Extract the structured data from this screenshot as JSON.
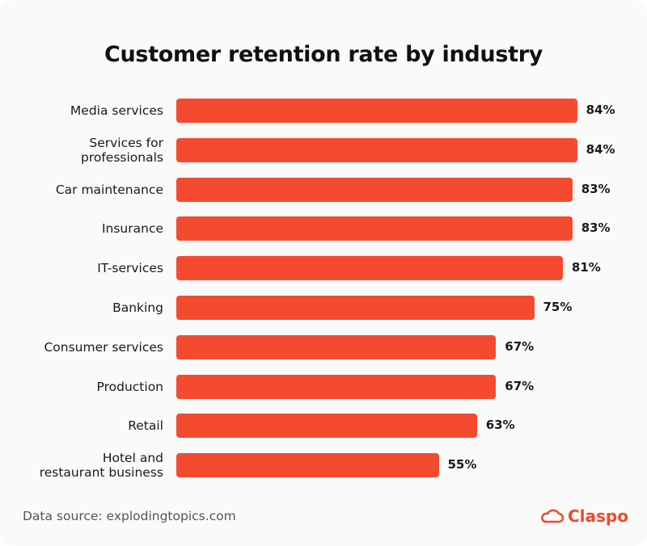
{
  "chart_data": {
    "type": "bar",
    "orientation": "horizontal",
    "title": "Customer retention rate by industry",
    "categories": [
      [
        "Media services"
      ],
      [
        "Services for",
        "professionals"
      ],
      [
        "Car maintenance"
      ],
      [
        "Insurance"
      ],
      [
        "IT-services"
      ],
      [
        "Banking"
      ],
      [
        "Consumer services"
      ],
      [
        "Production"
      ],
      [
        "Retail"
      ],
      [
        "Hotel and",
        "restaurant business"
      ]
    ],
    "values": [
      84,
      84,
      83,
      83,
      81,
      75,
      67,
      67,
      63,
      55
    ],
    "value_labels": [
      "84%",
      "84%",
      "83%",
      "83%",
      "81%",
      "75%",
      "67%",
      "67%",
      "63%",
      "55%"
    ],
    "xlim": [
      0,
      100
    ],
    "grid": false,
    "bar_color": "#f44b30"
  },
  "footer": {
    "source": "Data source: explodingtopics.com",
    "brand": "Claspo",
    "brand_color": "#f04a2e"
  }
}
